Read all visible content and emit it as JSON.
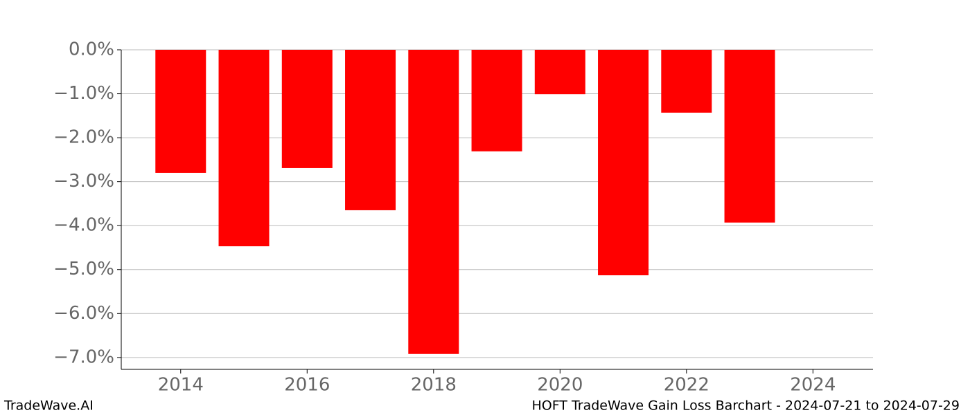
{
  "chart_data": {
    "type": "bar",
    "x": [
      2014,
      2015,
      2016,
      2017,
      2018,
      2019,
      2020,
      2021,
      2022,
      2023
    ],
    "values": [
      -2.8,
      -4.47,
      -2.69,
      -3.65,
      -6.92,
      -2.31,
      -1.01,
      -5.13,
      -1.43,
      -3.93
    ],
    "color": "#ff0000",
    "xlim": [
      2013.06,
      2024.95
    ],
    "xticks": [
      2014,
      2016,
      2018,
      2020,
      2022,
      2024
    ],
    "ylim": [
      -7.27,
      0
    ],
    "yticks": [
      {
        "value": 0,
        "label": "0.0%"
      },
      {
        "value": -1,
        "label": "−1.0%"
      },
      {
        "value": -2,
        "label": "−2.0%"
      },
      {
        "value": -3,
        "label": "−3.0%"
      },
      {
        "value": -4,
        "label": "−4.0%"
      },
      {
        "value": -5,
        "label": "−5.0%"
      },
      {
        "value": -6,
        "label": "−6.0%"
      },
      {
        "value": -7,
        "label": "−7.0%"
      }
    ],
    "grid": true,
    "footer_left": "TradeWave.AI",
    "footer_right": "HOFT TradeWave Gain Loss Barchart - 2024-07-21 to 2024-07-29"
  }
}
